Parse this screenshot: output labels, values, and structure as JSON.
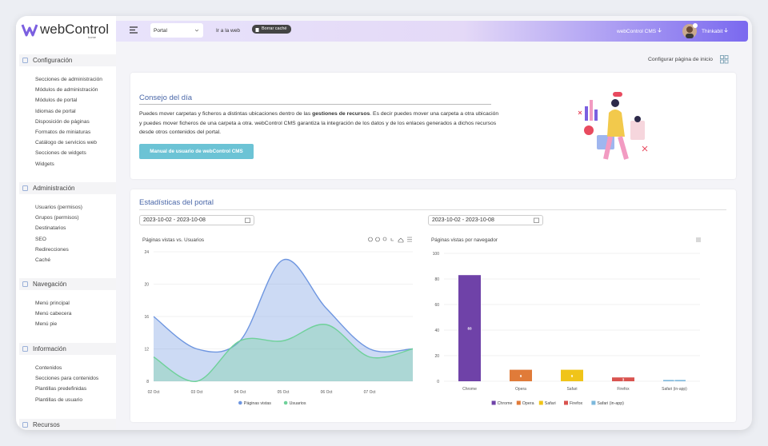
{
  "logo": {
    "name": "webControl",
    "sub": "home"
  },
  "topbar": {
    "portal_select": "Portal",
    "link": "Ir a la web",
    "cache_button": "Borrar caché",
    "cms_menu": "webControl CMS",
    "user": "Thinkabit"
  },
  "sidebar": [
    {
      "title": "Configuración",
      "items": [
        "Secciones de administración",
        "Módulos de administración",
        "Módulos de portal",
        "Idiomas de portal",
        "Disposición de páginas",
        "Formatos de miniaturas",
        "Catálogo de servicios web",
        "Secciones de widgets",
        "Widgets"
      ]
    },
    {
      "title": "Administración",
      "items": [
        "Usuarios (permisos)",
        "Grupos (permisos)",
        "Destinatarios",
        "SEO",
        "Redirecciones",
        "Caché"
      ]
    },
    {
      "title": "Navegación",
      "items": [
        "Menú principal",
        "Menú cabecera",
        "Menú pie"
      ]
    },
    {
      "title": "Información",
      "items": [
        "Contenidos",
        "Secciones para contenidos",
        "Plantillas predefinidas",
        "Plantillas de usuario"
      ]
    },
    {
      "title": "Recursos",
      "items": []
    }
  ],
  "page_action": "Configurar página de inicio",
  "tip": {
    "title": "Consejo del día",
    "text_before": "Puedes mover carpetas y ficheros a distintas ubicaciones dentro de las ",
    "text_bold": "gestiones de recursos",
    "text_after": ". Es decir puedes mover una carpeta a otra ubicación y puedes mover ficheros de una carpeta a otra. webControl CMS garantiza la integración de los datos y de los enlaces generados a dichos recursos desde otros contenidos del portal.",
    "button": "Manual de usuario de webControl CMS"
  },
  "stats": {
    "title": "Estadísticas del portal",
    "date_ranges": [
      "2023-10-02 - 2023-10-08",
      "2023-10-02 - 2023-10-08"
    ]
  },
  "chart_data": [
    {
      "type": "area",
      "title": "Páginas vistas vs. Usuarios",
      "categories": [
        "02 Oct",
        "03 Oct",
        "04 Oct",
        "05 Oct",
        "06 Oct",
        "07 Oct",
        null
      ],
      "series": [
        {
          "name": "Páginas vistas",
          "color": "#6e96e0",
          "values": [
            16,
            12,
            13,
            23,
            17,
            12,
            12
          ]
        },
        {
          "name": "Usuarios",
          "color": "#6fd19a",
          "values": [
            11,
            8,
            13,
            13,
            15,
            11,
            12
          ]
        }
      ],
      "ylim": [
        8,
        24
      ],
      "yticks": [
        8,
        12,
        16,
        20,
        24
      ],
      "grid": true,
      "legend": "bottom"
    },
    {
      "type": "bar",
      "title": "Páginas vistas por navegador",
      "categories": [
        "Chrome",
        "Opera",
        "Safari",
        "Firefox",
        "Safari (in-app)"
      ],
      "values": [
        83,
        9,
        9,
        3,
        1
      ],
      "colors": [
        "#6f42a8",
        "#e07b39",
        "#f0c419",
        "#d9534f",
        "#7cb8dc"
      ],
      "ylim": [
        0,
        100
      ],
      "yticks": [
        0,
        20,
        40,
        60,
        80,
        100
      ],
      "grid": true,
      "legend": "bottom"
    }
  ]
}
